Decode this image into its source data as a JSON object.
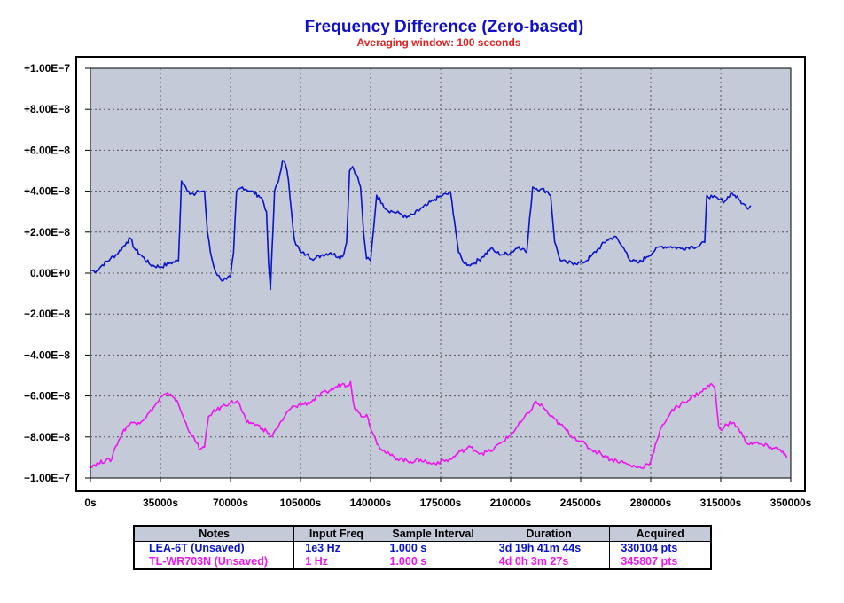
{
  "chart_data": {
    "type": "line",
    "title": "Frequency Difference (Zero-based)",
    "subtitle": "Averaging window: 100 seconds",
    "xlabel": "",
    "ylabel": "",
    "xlim": [
      0,
      350000
    ],
    "ylim": [
      -1e-07,
      1e-07
    ],
    "grid": true,
    "x_ticks": [
      0,
      35000,
      70000,
      105000,
      140000,
      175000,
      210000,
      245000,
      280000,
      315000,
      350000
    ],
    "x_tick_labels": [
      "0s",
      "35000s",
      "70000s",
      "105000s",
      "140000s",
      "175000s",
      "210000s",
      "245000s",
      "280000s",
      "315000s",
      "350000s"
    ],
    "y_ticks": [
      1e-07,
      8e-08,
      6e-08,
      4e-08,
      2e-08,
      0,
      -2e-08,
      -4e-08,
      -6e-08,
      -8e-08,
      -1e-07
    ],
    "y_tick_labels": [
      "+1.00E−7",
      "+8.00E−8",
      "+6.00E−8",
      "+4.00E−8",
      "+2.00E−8",
      "0.00E+0",
      "−2.00E−8",
      "−4.00E−8",
      "−6.00E−8",
      "−8.00E−8",
      "−1.00E−7"
    ],
    "series": [
      {
        "name": "LEA-6T (Unsaved)",
        "color": "#0a14c8",
        "x": [
          0,
          3000,
          6000,
          10000,
          14000,
          18000,
          20000,
          22000,
          26000,
          30000,
          35000,
          40000,
          44000,
          45500,
          47000,
          49000,
          52000,
          54000,
          57000,
          58500,
          60000,
          62000,
          65000,
          68000,
          70000,
          71500,
          73000,
          76000,
          80000,
          84000,
          86000,
          88000,
          89000,
          90000,
          92000,
          94000,
          96000,
          97500,
          99000,
          100500,
          102000,
          105000,
          108000,
          112000,
          116000,
          120000,
          124000,
          126000,
          128000,
          129500,
          131000,
          133000,
          135000,
          136500,
          138000,
          140000,
          143000,
          146000,
          148000,
          151000,
          155000,
          158000,
          162000,
          166000,
          168000,
          172000,
          176000,
          180000,
          182000,
          184000,
          186000,
          189000,
          192000,
          196000,
          200000,
          203000,
          206000,
          210000,
          214000,
          216000,
          218000,
          221000,
          225000,
          228000,
          230000,
          232000,
          235000,
          238000,
          242000,
          246000,
          250000,
          254000,
          258000,
          262000,
          265000,
          268000,
          270000,
          274000,
          278000,
          282000,
          285000,
          290000,
          295000,
          300000,
          304000,
          307000,
          308000,
          311000,
          314000,
          317000,
          320000,
          322000,
          324000,
          326000,
          328000,
          330000
        ],
        "values": [
          1.5e-09,
          1e-09,
          4e-09,
          7e-09,
          1e-08,
          1.5e-08,
          1.7e-08,
          1.2e-08,
          8e-09,
          4e-09,
          3e-09,
          5e-09,
          6e-09,
          4.5e-08,
          4.3e-08,
          4e-08,
          3.8e-08,
          4e-08,
          4e-08,
          2e-08,
          1e-08,
          2e-09,
          -3e-09,
          -3e-09,
          -2e-09,
          1e-08,
          4e-08,
          4.2e-08,
          4e-08,
          3.8e-08,
          3.6e-08,
          3e-08,
          5e-09,
          -8e-09,
          4e-08,
          4.5e-08,
          5.5e-08,
          5.3e-08,
          4.5e-08,
          3e-08,
          1.6e-08,
          1e-08,
          9e-09,
          7e-09,
          9e-09,
          1e-08,
          8e-09,
          8e-09,
          1.5e-08,
          5e-08,
          5.2e-08,
          4.8e-08,
          4.2e-08,
          2e-08,
          7e-09,
          6e-09,
          3.8e-08,
          3.4e-08,
          3.1e-08,
          3e-08,
          2.9e-08,
          2.7e-08,
          2.9e-08,
          3.2e-08,
          3.3e-08,
          3.6e-08,
          3.8e-08,
          3.9e-08,
          2.5e-08,
          1e-08,
          6e-09,
          4e-09,
          5e-09,
          8e-09,
          1.2e-08,
          1e-08,
          9e-09,
          1e-08,
          1.3e-08,
          1.2e-08,
          1e-08,
          4.2e-08,
          4.1e-08,
          4e-08,
          3.8e-08,
          1.5e-08,
          6e-09,
          5e-09,
          5e-09,
          5e-09,
          8e-09,
          1.2e-08,
          1.6e-08,
          1.8e-08,
          1.4e-08,
          1e-08,
          6e-09,
          5e-09,
          8e-09,
          1.1e-08,
          1.3e-08,
          1.3e-08,
          1.2e-08,
          1.3e-08,
          1.3e-08,
          1.5e-08,
          3.8e-08,
          3.7e-08,
          3.6e-08,
          3.5e-08,
          3.9e-08,
          3.8e-08,
          3.6e-08,
          3.4e-08,
          3.2e-08,
          3.3e-08
        ]
      },
      {
        "name": "TL-WR703N (Unsaved)",
        "color": "#ee16ee",
        "x": [
          0,
          4000,
          8000,
          10000,
          12000,
          14000,
          16000,
          18000,
          21000,
          24000,
          28000,
          32000,
          36000,
          40000,
          42000,
          44000,
          47000,
          50000,
          53000,
          55000,
          57000,
          59000,
          61000,
          63000,
          66000,
          70000,
          74000,
          76000,
          78000,
          80000,
          83000,
          86000,
          88000,
          90000,
          93000,
          96000,
          99000,
          102000,
          106000,
          110000,
          114000,
          118000,
          122000,
          126000,
          128000,
          130000,
          132000,
          134000,
          136000,
          138000,
          141000,
          144000,
          148000,
          152000,
          156000,
          160000,
          165000,
          170000,
          175000,
          180000,
          185000,
          190000,
          195000,
          200000,
          205000,
          210000,
          215000,
          220000,
          222000,
          224000,
          226000,
          230000,
          235000,
          240000,
          245000,
          250000,
          255000,
          260000,
          265000,
          270000,
          275000,
          277000,
          280000,
          283000,
          286000,
          290000,
          295000,
          300000,
          305000,
          308000,
          310000,
          312000,
          314000,
          316000,
          318000,
          321000,
          324000,
          328000,
          332000,
          336000,
          340000,
          344000,
          346000,
          348000
        ],
        "values": [
          -9.4e-08,
          -9.3e-08,
          -9.1e-08,
          -9.2e-08,
          -8.6e-08,
          -8.2e-08,
          -7.8e-08,
          -7.5e-08,
          -7.3e-08,
          -7.3e-08,
          -7e-08,
          -6.5e-08,
          -6e-08,
          -5.9e-08,
          -6.1e-08,
          -6.4e-08,
          -7.2e-08,
          -7.8e-08,
          -8.3e-08,
          -8.6e-08,
          -8.5e-08,
          -7e-08,
          -6.8e-08,
          -6.7e-08,
          -6.5e-08,
          -6.3e-08,
          -6.3e-08,
          -6.8e-08,
          -7.3e-08,
          -7.3e-08,
          -7.4e-08,
          -7.6e-08,
          -7.7e-08,
          -8e-08,
          -7.6e-08,
          -7.2e-08,
          -6.7e-08,
          -6.5e-08,
          -6.4e-08,
          -6.3e-08,
          -6e-08,
          -5.8e-08,
          -5.6e-08,
          -5.4e-08,
          -5.5e-08,
          -5.3e-08,
          -6.6e-08,
          -6.8e-08,
          -7e-08,
          -6.9e-08,
          -7.8e-08,
          -8.4e-08,
          -8.8e-08,
          -9e-08,
          -9.1e-08,
          -9.2e-08,
          -9.1e-08,
          -9.3e-08,
          -9.2e-08,
          -9.1e-08,
          -8.7e-08,
          -8.5e-08,
          -8.8e-08,
          -8.7e-08,
          -8.3e-08,
          -7.9e-08,
          -7.3e-08,
          -6.7e-08,
          -6.3e-08,
          -6.4e-08,
          -6.5e-08,
          -7e-08,
          -7.4e-08,
          -7.9e-08,
          -8.2e-08,
          -8.6e-08,
          -8.8e-08,
          -9.1e-08,
          -9.2e-08,
          -9.4e-08,
          -9.5e-08,
          -9.4e-08,
          -9.2e-08,
          -8.2e-08,
          -7.4e-08,
          -6.8e-08,
          -6.4e-08,
          -6.1e-08,
          -5.8e-08,
          -5.6e-08,
          -5.4e-08,
          -5.6e-08,
          -7.5e-08,
          -7.6e-08,
          -7.4e-08,
          -7.3e-08,
          -7.6e-08,
          -8.3e-08,
          -8.3e-08,
          -8.4e-08,
          -8.5e-08,
          -8.6e-08,
          -8.7e-08,
          -9e-08
        ]
      }
    ]
  },
  "legend_table": {
    "headers": [
      "Notes",
      "Input Freq",
      "Sample Interval",
      "Duration",
      "Acquired"
    ],
    "rows": [
      {
        "color": "#0a14c8",
        "cells": [
          "LEA-6T (Unsaved)",
          "1e3 Hz",
          "1.000 s",
          "3d 19h 41m 44s",
          "330104 pts"
        ]
      },
      {
        "color": "#ee16ee",
        "cells": [
          "TL-WR703N (Unsaved)",
          "1 Hz",
          "1.000 s",
          "4d 0h 3m 27s",
          "345807 pts"
        ]
      }
    ]
  },
  "colors": {
    "title": "#1010c8",
    "subtitle": "#e02020",
    "plot_background": "#c5cad9",
    "grid": "#555555",
    "zero_label": "#1010c8"
  }
}
